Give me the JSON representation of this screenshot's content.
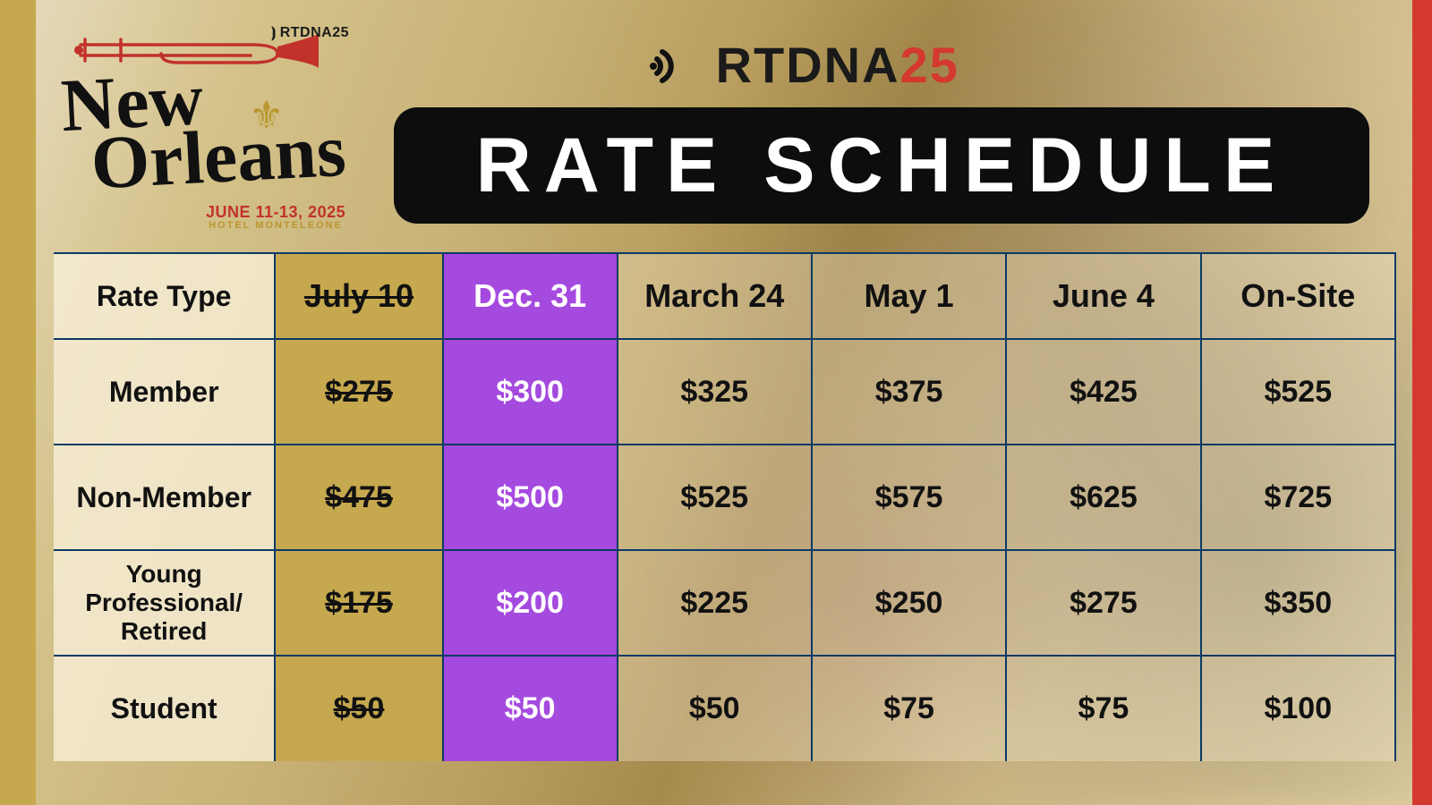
{
  "event": {
    "brand_prefix": "RTDNA",
    "brand_year": "25",
    "city_line1": "New",
    "city_line2": "Orleans",
    "dates": "JUNE 11-13, 2025",
    "venue": "HOTEL MONTELEONE"
  },
  "title": "RATE SCHEDULE",
  "colors": {
    "gold_bar": "#c6a84e",
    "red_bar": "#d4382f",
    "border": "#0a3a66",
    "past_col_bg": "#c6a84e",
    "current_col_bg": "#a54adf",
    "current_col_text": "#ffffff",
    "pill_bg": "#0d0d0d",
    "brand_year_color": "#d4382f"
  },
  "table": {
    "row_header_label": "Rate Type",
    "columns": [
      {
        "label": "July 10",
        "state": "past"
      },
      {
        "label": "Dec. 31",
        "state": "current"
      },
      {
        "label": "March 24",
        "state": "future"
      },
      {
        "label": "May 1",
        "state": "future"
      },
      {
        "label": "June 4",
        "state": "future"
      },
      {
        "label": "On-Site",
        "state": "future"
      }
    ],
    "rows": [
      {
        "label": "Member",
        "values": [
          "$275",
          "$300",
          "$325",
          "$375",
          "$425",
          "$525"
        ]
      },
      {
        "label": "Non-Member",
        "values": [
          "$475",
          "$500",
          "$525",
          "$575",
          "$625",
          "$725"
        ]
      },
      {
        "label": "Young Professional/ Retired",
        "values": [
          "$175",
          "$200",
          "$225",
          "$250",
          "$275",
          "$350"
        ],
        "small": true
      },
      {
        "label": "Student",
        "values": [
          "$50",
          "$50",
          "$50",
          "$75",
          "$75",
          "$100"
        ]
      }
    ]
  }
}
